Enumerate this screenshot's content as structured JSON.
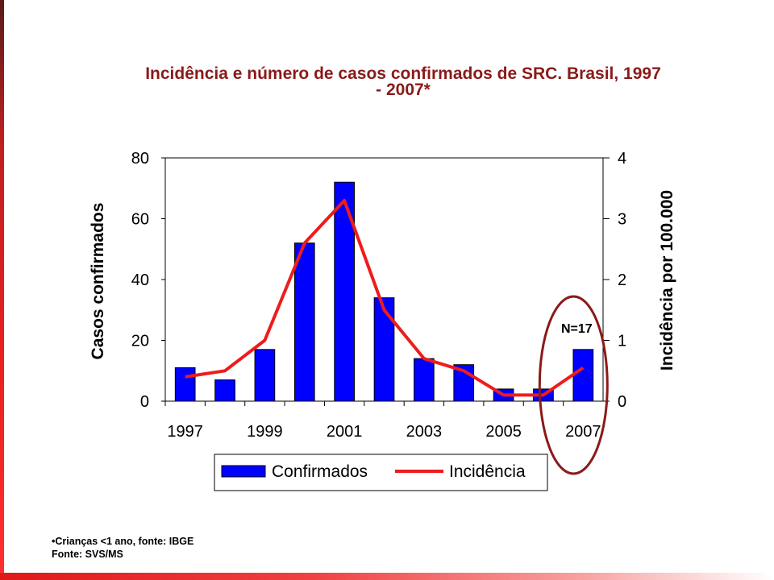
{
  "slide": {
    "title_line1": "Incidência e número de casos confirmados de SRC. Brasil, 1997",
    "title_line2": "- 2007*",
    "footnote_line1": "•Crianças <1 ano, fonte: IBGE",
    "footnote_line2": "Fonte: SVS/MS",
    "colors": {
      "title": "#8b1a1a",
      "bar": "#0000ff",
      "line": "#ee1c1c",
      "ellipse": "#8b1a1a"
    }
  },
  "chart_data": {
    "type": "bar",
    "categories": [
      "1997",
      "1998",
      "1999",
      "2000",
      "2001",
      "2002",
      "2003",
      "2004",
      "2005",
      "2006",
      "2007"
    ],
    "x_tick_labels": [
      "1997",
      "1999",
      "2001",
      "2003",
      "2005",
      "2007"
    ],
    "series": [
      {
        "name": "Confirmados",
        "type": "bar",
        "axis": "left",
        "values": [
          11,
          7,
          17,
          52,
          72,
          34,
          14,
          12,
          4,
          4,
          17
        ]
      },
      {
        "name": "Incidência",
        "type": "line",
        "axis": "right",
        "values": [
          0.4,
          0.5,
          1.0,
          2.6,
          3.3,
          1.5,
          0.7,
          0.5,
          0.1,
          0.1,
          0.55
        ]
      }
    ],
    "ylabel": "Casos confirmados",
    "ylabel_right": "Incidência por 100.000",
    "ylim": [
      0,
      80
    ],
    "ylim_right": [
      0,
      4
    ],
    "yticks": [
      "0",
      "20",
      "40",
      "60",
      "80"
    ],
    "yticks_right": [
      "0",
      "1",
      "2",
      "3",
      "4"
    ],
    "annotation": "N=17",
    "legend_position": "bottom",
    "grid": false
  }
}
